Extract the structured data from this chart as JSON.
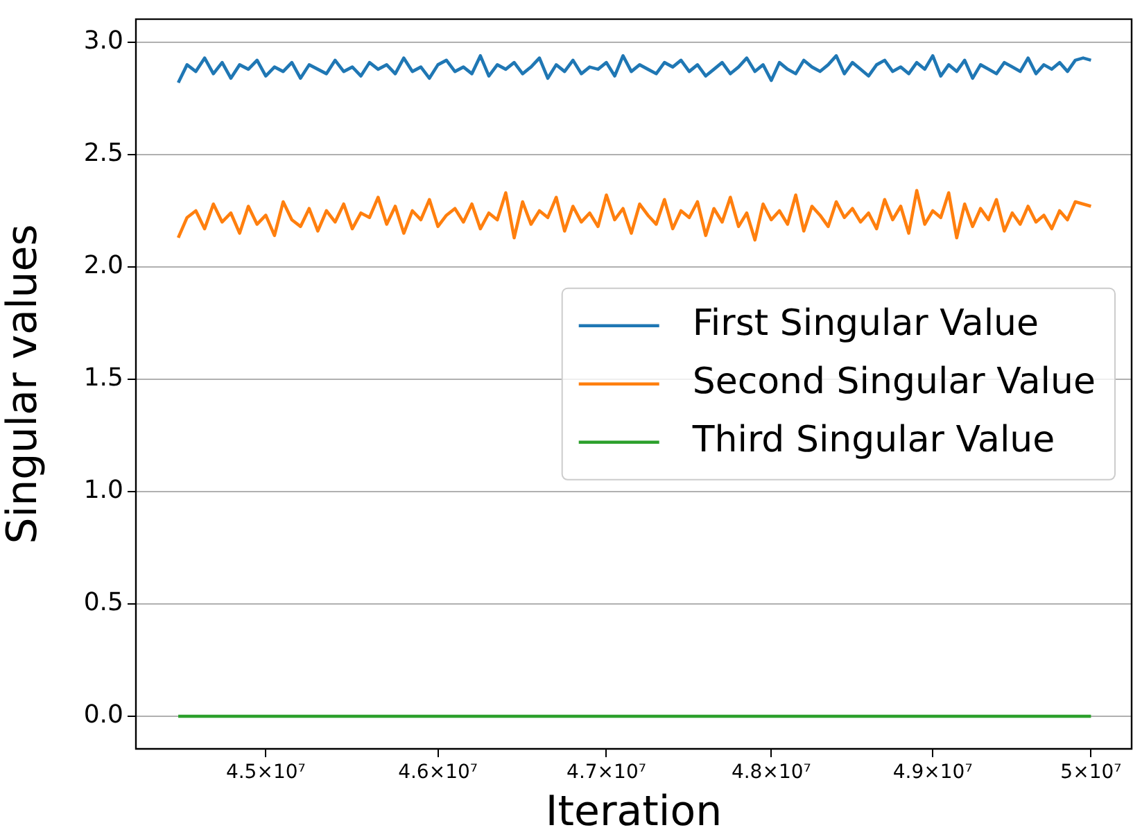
{
  "chart_data": {
    "type": "line",
    "xlabel": "Iteration",
    "ylabel": "Singular values",
    "log": "x",
    "grid": "y",
    "legend": "right",
    "marker": "none",
    "line_style": "solid",
    "xlim": [
      44260000,
      50260000
    ],
    "ylim": [
      -0.145,
      3.103
    ],
    "xticks": [
      {
        "value": 45000000,
        "label": "4.5×10⁷"
      },
      {
        "value": 46000000,
        "label": "4.6×10⁷"
      },
      {
        "value": 47000000,
        "label": "4.7×10⁷"
      },
      {
        "value": 48000000,
        "label": "4.8×10⁷"
      },
      {
        "value": 49000000,
        "label": "4.9×10⁷"
      },
      {
        "value": 50000000,
        "label": "5×10⁷"
      }
    ],
    "yticks": [
      {
        "value": 0,
        "label": "0.0"
      },
      {
        "value": 0.5,
        "label": "0.5"
      },
      {
        "value": 1,
        "label": "1.0"
      },
      {
        "value": 1.5,
        "label": "1.5"
      },
      {
        "value": 2,
        "label": "2.0"
      },
      {
        "value": 2.5,
        "label": "2.5"
      },
      {
        "value": 3,
        "label": "3.0"
      }
    ],
    "x": [
      44500000,
      44550000,
      44600000,
      44650000,
      44700000,
      44750000,
      44800000,
      44850000,
      44900000,
      44950000,
      45000000,
      45050000,
      45100000,
      45150000,
      45200000,
      45250000,
      45300000,
      45350000,
      45400000,
      45450000,
      45500000,
      45550000,
      45600000,
      45650000,
      45700000,
      45750000,
      45800000,
      45850000,
      45900000,
      45950000,
      46000000,
      46050000,
      46100000,
      46150000,
      46200000,
      46250000,
      46300000,
      46350000,
      46400000,
      46450000,
      46500000,
      46550000,
      46600000,
      46650000,
      46700000,
      46750000,
      46800000,
      46850000,
      46900000,
      46950000,
      47000000,
      47050000,
      47100000,
      47150000,
      47200000,
      47250000,
      47300000,
      47350000,
      47400000,
      47450000,
      47500000,
      47550000,
      47600000,
      47650000,
      47700000,
      47750000,
      47800000,
      47850000,
      47900000,
      47950000,
      48000000,
      48050000,
      48100000,
      48150000,
      48200000,
      48250000,
      48300000,
      48350000,
      48400000,
      48450000,
      48500000,
      48550000,
      48600000,
      48650000,
      48700000,
      48750000,
      48800000,
      48850000,
      48900000,
      48950000,
      49000000,
      49050000,
      49100000,
      49150000,
      49200000,
      49250000,
      49300000,
      49350000,
      49400000,
      49450000,
      49500000,
      49550000,
      49600000,
      49650000,
      49700000,
      49750000,
      49800000,
      49850000,
      49900000,
      49950000,
      50000000
    ],
    "series": [
      {
        "name": "First Singular Value",
        "color": "#1f77b4",
        "values": [
          2.82,
          2.9,
          2.87,
          2.93,
          2.86,
          2.91,
          2.84,
          2.9,
          2.88,
          2.92,
          2.85,
          2.89,
          2.87,
          2.91,
          2.84,
          2.9,
          2.88,
          2.86,
          2.92,
          2.87,
          2.89,
          2.85,
          2.91,
          2.88,
          2.9,
          2.86,
          2.93,
          2.87,
          2.89,
          2.84,
          2.9,
          2.92,
          2.87,
          2.89,
          2.86,
          2.94,
          2.85,
          2.9,
          2.88,
          2.91,
          2.86,
          2.89,
          2.93,
          2.84,
          2.9,
          2.87,
          2.92,
          2.86,
          2.89,
          2.88,
          2.91,
          2.85,
          2.94,
          2.87,
          2.9,
          2.88,
          2.86,
          2.91,
          2.89,
          2.92,
          2.87,
          2.9,
          2.85,
          2.88,
          2.91,
          2.86,
          2.89,
          2.93,
          2.87,
          2.9,
          2.83,
          2.91,
          2.88,
          2.86,
          2.92,
          2.89,
          2.87,
          2.9,
          2.94,
          2.86,
          2.91,
          2.88,
          2.85,
          2.9,
          2.92,
          2.87,
          2.89,
          2.86,
          2.91,
          2.88,
          2.94,
          2.85,
          2.9,
          2.87,
          2.92,
          2.84,
          2.9,
          2.88,
          2.86,
          2.91,
          2.89,
          2.87,
          2.93,
          2.86,
          2.9,
          2.88,
          2.91,
          2.87,
          2.92,
          2.93,
          2.92
        ]
      },
      {
        "name": "Second Singular Value",
        "color": "#ff7f0e",
        "values": [
          2.13,
          2.22,
          2.25,
          2.17,
          2.28,
          2.2,
          2.24,
          2.15,
          2.27,
          2.19,
          2.23,
          2.14,
          2.29,
          2.21,
          2.18,
          2.26,
          2.16,
          2.25,
          2.2,
          2.28,
          2.17,
          2.24,
          2.22,
          2.31,
          2.19,
          2.27,
          2.15,
          2.25,
          2.21,
          2.3,
          2.18,
          2.23,
          2.26,
          2.2,
          2.28,
          2.17,
          2.24,
          2.21,
          2.33,
          2.13,
          2.29,
          2.19,
          2.25,
          2.22,
          2.31,
          2.16,
          2.27,
          2.2,
          2.24,
          2.18,
          2.32,
          2.21,
          2.26,
          2.15,
          2.28,
          2.23,
          2.19,
          2.3,
          2.17,
          2.25,
          2.22,
          2.29,
          2.14,
          2.26,
          2.2,
          2.31,
          2.18,
          2.24,
          2.12,
          2.28,
          2.21,
          2.25,
          2.19,
          2.32,
          2.16,
          2.27,
          2.23,
          2.18,
          2.29,
          2.22,
          2.26,
          2.2,
          2.24,
          2.17,
          2.3,
          2.21,
          2.27,
          2.15,
          2.34,
          2.19,
          2.25,
          2.22,
          2.33,
          2.13,
          2.28,
          2.18,
          2.26,
          2.21,
          2.3,
          2.16,
          2.24,
          2.19,
          2.27,
          2.2,
          2.23,
          2.17,
          2.25,
          2.21,
          2.29,
          2.28,
          2.27
        ]
      },
      {
        "name": "Third Singular Value",
        "color": "#2ca02c",
        "x": [
          44500000,
          50000000
        ],
        "values": [
          0,
          0
        ]
      }
    ]
  }
}
